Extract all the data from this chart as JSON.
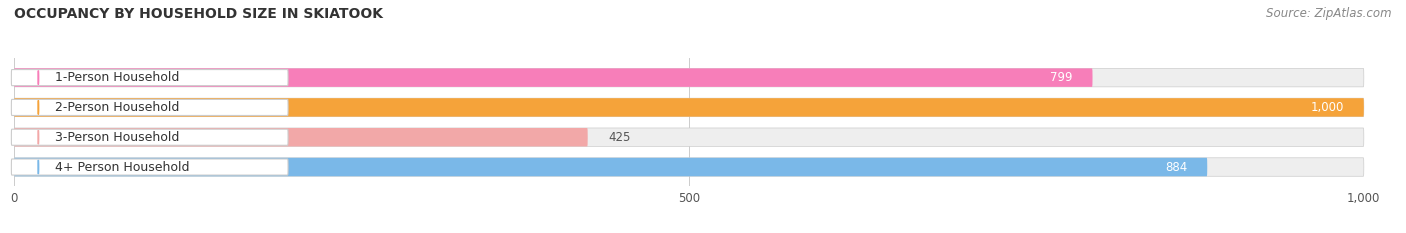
{
  "title": "OCCUPANCY BY HOUSEHOLD SIZE IN SKIATOOK",
  "source": "Source: ZipAtlas.com",
  "categories": [
    "1-Person Household",
    "2-Person Household",
    "3-Person Household",
    "4+ Person Household"
  ],
  "values": [
    799,
    1000,
    425,
    884
  ],
  "bar_colors": [
    "#f77eb9",
    "#f5a33a",
    "#f2a8a8",
    "#7ab8e8"
  ],
  "bar_bg_colors": [
    "#eeeeee",
    "#eeeeee",
    "#eeeeee",
    "#eeeeee"
  ],
  "value_inside": [
    true,
    true,
    false,
    true
  ],
  "value_labels": [
    "799",
    "1,000",
    "425",
    "884"
  ],
  "xlim": [
    0,
    1000
  ],
  "xticks": [
    0,
    500,
    1000
  ],
  "bar_height": 0.62,
  "figsize": [
    14.06,
    2.33
  ],
  "dpi": 100,
  "title_fontsize": 10,
  "label_fontsize": 9,
  "value_fontsize": 8.5,
  "source_fontsize": 8.5,
  "axis_fontsize": 8.5
}
